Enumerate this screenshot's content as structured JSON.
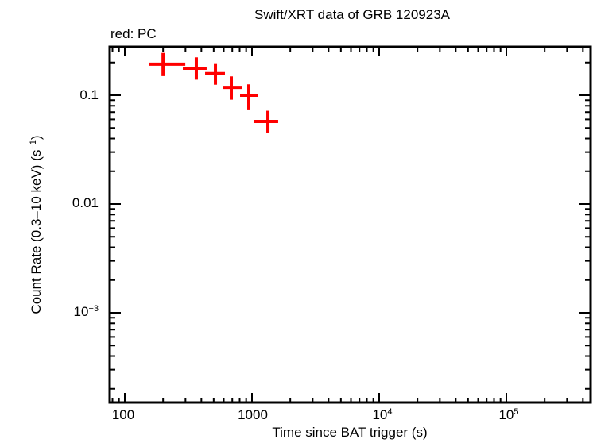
{
  "header": {
    "title": "Swift/XRT data of GRB 120923A",
    "subtitle": "red: PC"
  },
  "axes": {
    "xlabel": "Time since BAT trigger (s)",
    "ylabel_main": "Count Rate (0.3–10 keV) (s",
    "ylabel_sup": "−1",
    "ylabel_end": ")",
    "xticks": [
      {
        "base": "100",
        "sup": ""
      },
      {
        "base": "1000",
        "sup": ""
      },
      {
        "base": "10",
        "sup": "4"
      },
      {
        "base": "10",
        "sup": "5"
      }
    ],
    "yticks": [
      {
        "base": "0.1",
        "sup": ""
      },
      {
        "base": "0.01",
        "sup": ""
      },
      {
        "base": "10",
        "sup": "−3"
      }
    ]
  },
  "colors": {
    "series": "#ff0000",
    "axis": "#000000"
  },
  "chart_data": {
    "type": "scatter",
    "title": "Swift/XRT data of GRB 120923A",
    "subtitle": "red: PC",
    "xlabel": "Time since BAT trigger (s)",
    "ylabel": "Count Rate (0.3–10 keV) (s⁻¹)",
    "xscale": "log",
    "yscale": "log",
    "xlim": [
      75,
      500000
    ],
    "ylim": [
      6e-05,
      0.28
    ],
    "grid": false,
    "legend": "red: PC",
    "series": [
      {
        "name": "PC",
        "color": "#ff0000",
        "points": [
          {
            "x": 200,
            "xmin": 154,
            "xmax": 299,
            "y": 0.193,
            "ymin": 0.15,
            "ymax": 0.245
          },
          {
            "x": 365,
            "xmin": 286,
            "xmax": 440,
            "y": 0.177,
            "ymin": 0.139,
            "ymax": 0.223
          },
          {
            "x": 516,
            "xmin": 428,
            "xmax": 613,
            "y": 0.158,
            "ymin": 0.125,
            "ymax": 0.197
          },
          {
            "x": 688,
            "xmin": 595,
            "xmax": 841,
            "y": 0.118,
            "ymin": 0.091,
            "ymax": 0.149
          },
          {
            "x": 944,
            "xmin": 806,
            "xmax": 1106,
            "y": 0.1,
            "ymin": 0.074,
            "ymax": 0.126
          },
          {
            "x": 1334,
            "xmin": 1029,
            "xmax": 1607,
            "y": 0.0574,
            "ymin": 0.0454,
            "ymax": 0.072
          }
        ]
      }
    ]
  }
}
